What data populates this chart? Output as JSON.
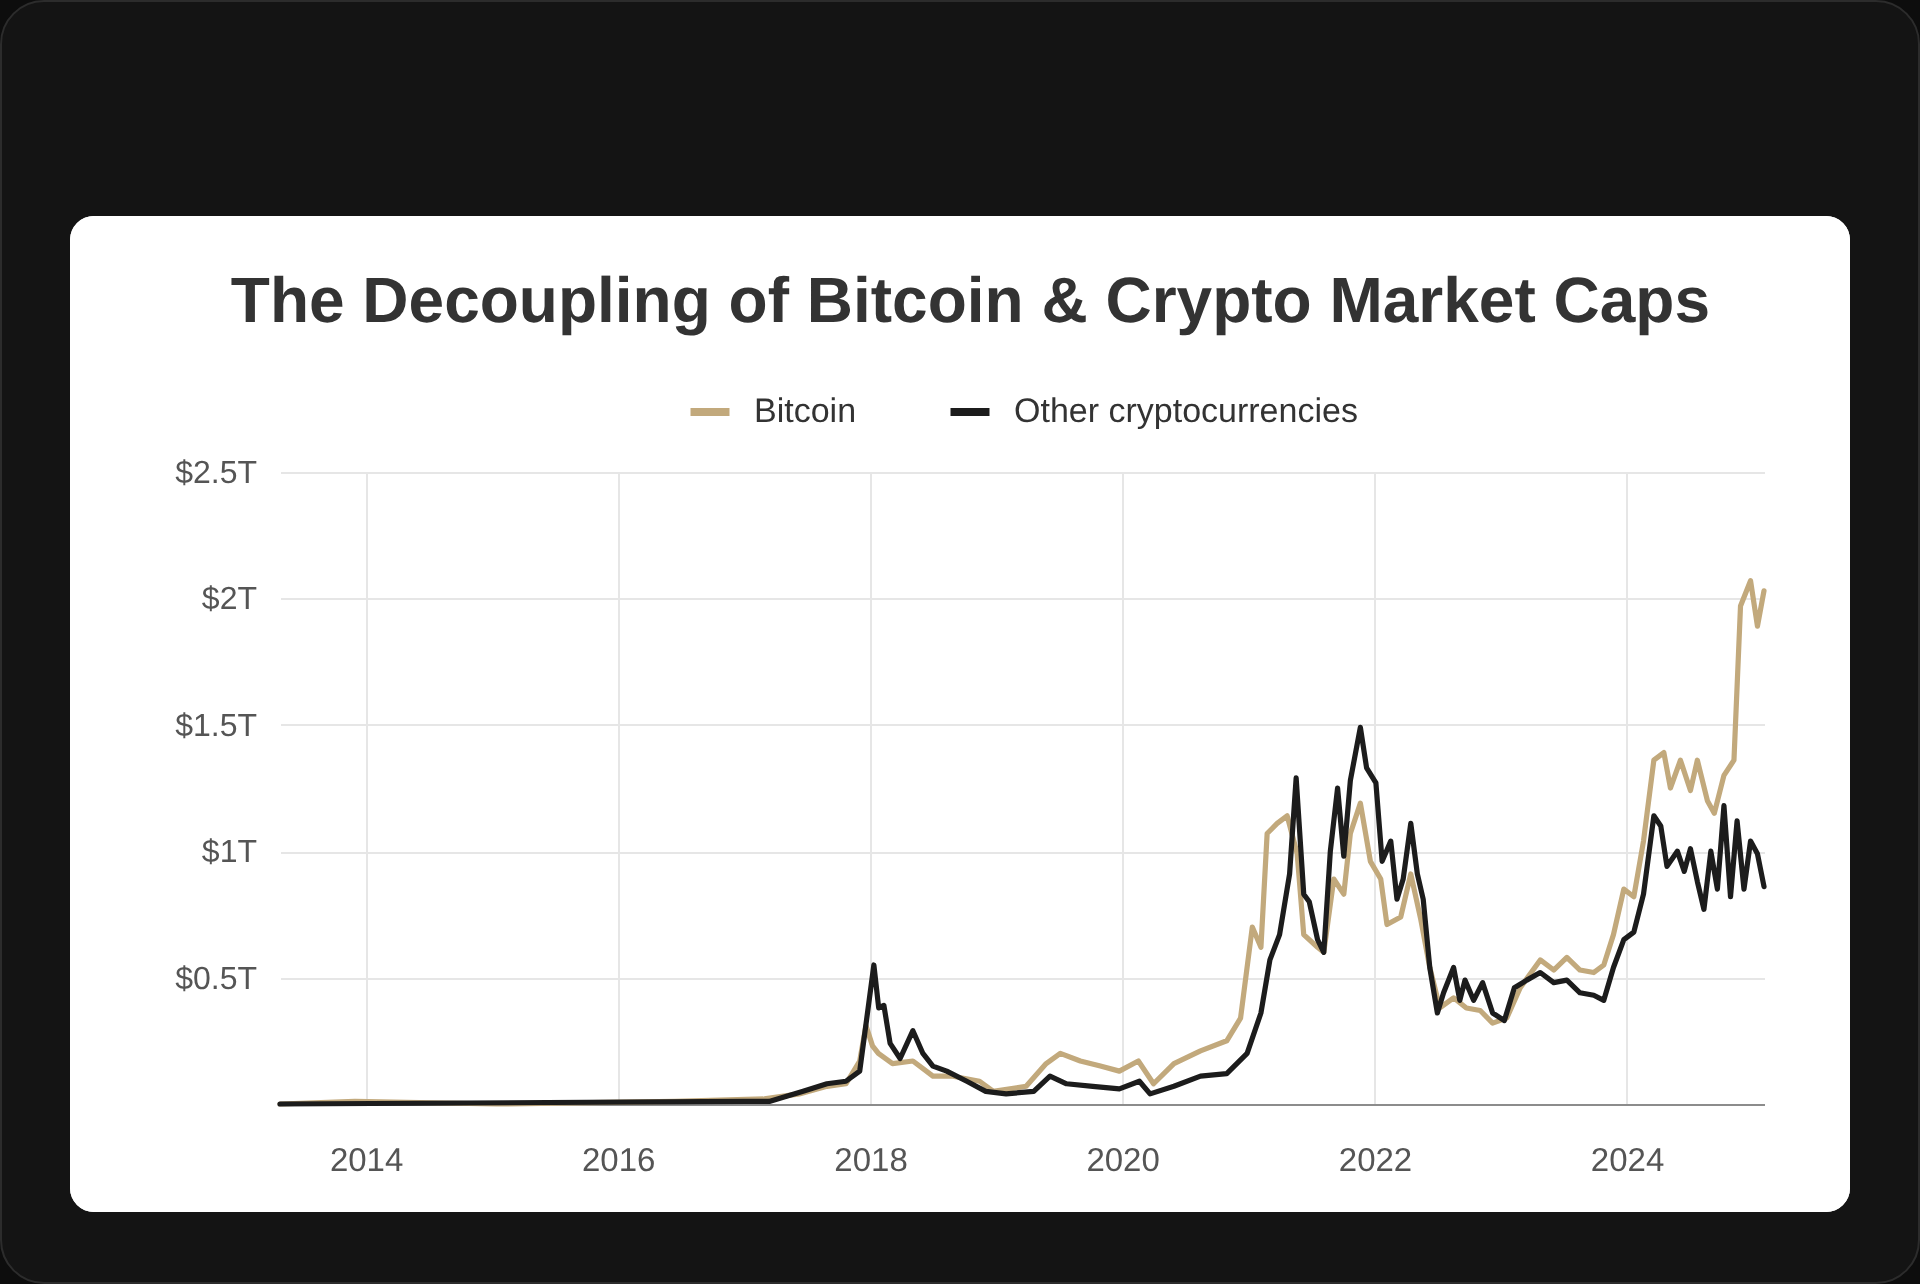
{
  "chart_data": {
    "type": "line",
    "title": "The Decoupling of Bitcoin & Crypto Market Caps",
    "xlim": [
      "2013-04-28",
      "2025-02-02"
    ],
    "xticks": [
      "2014",
      "2016",
      "2018",
      "2020",
      "2022",
      "2024"
    ],
    "ylim": [
      0,
      2.5
    ],
    "yticks": [
      {
        "value": 0.5,
        "label": "$0.5T"
      },
      {
        "value": 1,
        "label": "$1T"
      },
      {
        "value": 1.5,
        "label": "$1.5T"
      },
      {
        "value": 2,
        "label": "$2T"
      },
      {
        "value": 2.5,
        "label": "$2.5T"
      }
    ],
    "grid": true,
    "legend": "top",
    "line_style": "solid",
    "series": [
      {
        "name": "Bitcoin",
        "color": "#c2a97c",
        "x": [
          "2013-04-28",
          "2013-12-01",
          "2015-01-15",
          "2016-06-15",
          "2017-03-01",
          "2017-06-10",
          "2017-08-29",
          "2017-10-23",
          "2017-12-02",
          "2017-12-20",
          "2018-01-08",
          "2018-01-25",
          "2018-03-07",
          "2018-05-05",
          "2018-07-02",
          "2018-08-29",
          "2018-11-14",
          "2018-12-24",
          "2019-03-29",
          "2019-05-26",
          "2019-07-06",
          "2019-09-02",
          "2019-10-30",
          "2019-12-24",
          "2020-02-17",
          "2020-04-01",
          "2020-05-30",
          "2020-08-15",
          "2020-10-30",
          "2020-12-09",
          "2021-01-12",
          "2021-02-06",
          "2021-02-24",
          "2021-03-25",
          "2021-04-23",
          "2021-05-22",
          "2021-06-10",
          "2021-07-20",
          "2021-08-07",
          "2021-09-05",
          "2021-10-04",
          "2021-10-23",
          "2021-11-21",
          "2021-12-20",
          "2022-01-19",
          "2022-02-06",
          "2022-03-18",
          "2022-04-16",
          "2022-05-15",
          "2022-06-10",
          "2022-07-09",
          "2022-08-18",
          "2022-09-24",
          "2022-11-03",
          "2022-12-09",
          "2023-01-19",
          "2023-02-27",
          "2023-04-26",
          "2023-06-04",
          "2023-07-12",
          "2023-08-19",
          "2023-09-28",
          "2023-10-27",
          "2023-11-24",
          "2023-12-24",
          "2024-01-22",
          "2024-02-19",
          "2024-03-20",
          "2024-04-18",
          "2024-05-07",
          "2024-06-05",
          "2024-07-04",
          "2024-07-24",
          "2024-08-22",
          "2024-09-11",
          "2024-10-09",
          "2024-11-07",
          "2024-11-26",
          "2024-12-25",
          "2025-01-14",
          "2025-02-02"
        ],
        "values": [
          0.0,
          0.01,
          0.0,
          0.01,
          0.02,
          0.04,
          0.07,
          0.08,
          0.17,
          0.31,
          0.23,
          0.2,
          0.16,
          0.17,
          0.11,
          0.11,
          0.09,
          0.05,
          0.07,
          0.16,
          0.2,
          0.17,
          0.15,
          0.13,
          0.17,
          0.08,
          0.16,
          0.21,
          0.25,
          0.34,
          0.7,
          0.62,
          1.07,
          1.11,
          1.14,
          0.99,
          0.67,
          0.62,
          0.6,
          0.89,
          0.83,
          1.07,
          1.19,
          0.96,
          0.89,
          0.71,
          0.74,
          0.91,
          0.73,
          0.54,
          0.38,
          0.42,
          0.38,
          0.37,
          0.32,
          0.34,
          0.46,
          0.57,
          0.53,
          0.58,
          0.53,
          0.52,
          0.55,
          0.67,
          0.85,
          0.82,
          1.04,
          1.36,
          1.39,
          1.25,
          1.36,
          1.24,
          1.36,
          1.2,
          1.15,
          1.3,
          1.36,
          1.97,
          2.07,
          1.89,
          2.03
        ]
      },
      {
        "name": "Other cryptocurrencies",
        "color": "#1c1c1c",
        "x": [
          "2013-04-28",
          "2017-01-01",
          "2017-03-15",
          "2017-06-21",
          "2017-08-29",
          "2017-10-23",
          "2017-12-02",
          "2018-01-12",
          "2018-01-26",
          "2018-02-10",
          "2018-02-28",
          "2018-03-29",
          "2018-05-05",
          "2018-06-03",
          "2018-07-02",
          "2018-08-11",
          "2018-10-08",
          "2018-12-02",
          "2019-01-30",
          "2019-04-20",
          "2019-06-06",
          "2019-07-24",
          "2019-10-08",
          "2019-12-24",
          "2020-02-20",
          "2020-03-22",
          "2020-05-30",
          "2020-08-15",
          "2020-10-30",
          "2020-12-28",
          "2021-02-06",
          "2021-03-04",
          "2021-04-01",
          "2021-04-30",
          "2021-05-19",
          "2021-06-10",
          "2021-06-26",
          "2021-07-20",
          "2021-08-07",
          "2021-08-26",
          "2021-09-16",
          "2021-10-04",
          "2021-10-23",
          "2021-11-21",
          "2021-12-09",
          "2022-01-05",
          "2022-01-23",
          "2022-02-17",
          "2022-03-07",
          "2022-03-25",
          "2022-04-16",
          "2022-05-05",
          "2022-05-22",
          "2022-06-10",
          "2022-07-02",
          "2022-07-20",
          "2022-08-18",
          "2022-09-05",
          "2022-09-20",
          "2022-10-15",
          "2022-11-10",
          "2022-12-09",
          "2023-01-12",
          "2023-02-10",
          "2023-03-18",
          "2023-04-26",
          "2023-06-04",
          "2023-07-12",
          "2023-08-19",
          "2023-09-28",
          "2023-10-27",
          "2023-11-24",
          "2023-12-24",
          "2024-01-22",
          "2024-02-19",
          "2024-03-20",
          "2024-04-09",
          "2024-04-27",
          "2024-05-27",
          "2024-06-16",
          "2024-07-04",
          "2024-07-24",
          "2024-08-12",
          "2024-09-01",
          "2024-09-20",
          "2024-10-09",
          "2024-10-28",
          "2024-11-16",
          "2024-12-06",
          "2024-12-25",
          "2025-01-14",
          "2025-02-02"
        ],
        "values": [
          0.0,
          0.01,
          0.01,
          0.05,
          0.08,
          0.09,
          0.13,
          0.55,
          0.38,
          0.39,
          0.24,
          0.18,
          0.29,
          0.2,
          0.15,
          0.13,
          0.09,
          0.05,
          0.04,
          0.05,
          0.11,
          0.08,
          0.07,
          0.06,
          0.09,
          0.04,
          0.07,
          0.11,
          0.12,
          0.2,
          0.36,
          0.57,
          0.67,
          0.91,
          1.29,
          0.83,
          0.8,
          0.65,
          0.6,
          1.0,
          1.25,
          0.98,
          1.28,
          1.49,
          1.33,
          1.27,
          0.96,
          1.04,
          0.81,
          0.89,
          1.11,
          0.91,
          0.81,
          0.54,
          0.36,
          0.44,
          0.54,
          0.41,
          0.49,
          0.41,
          0.48,
          0.36,
          0.33,
          0.46,
          0.49,
          0.52,
          0.48,
          0.49,
          0.44,
          0.43,
          0.41,
          0.54,
          0.65,
          0.68,
          0.83,
          1.14,
          1.1,
          0.94,
          1.0,
          0.92,
          1.01,
          0.88,
          0.77,
          1.0,
          0.85,
          1.18,
          0.82,
          1.12,
          0.85,
          1.04,
          0.99,
          0.86
        ]
      }
    ]
  }
}
